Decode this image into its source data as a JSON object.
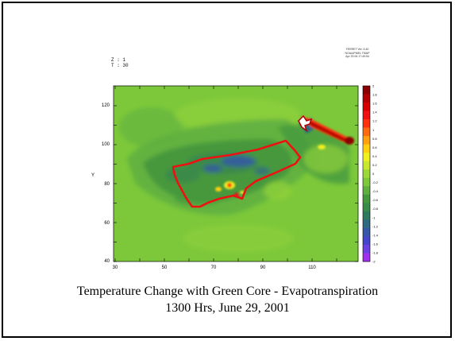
{
  "header": {
    "z_label": "Z : 1",
    "t_label": "T : 30",
    "meta_lines": [
      "FERRET Ver. 5.40",
      "NOAA/PMEL TMAP",
      "Apr 25 06 17:49:54"
    ]
  },
  "plot": {
    "y_axis_label": "Y",
    "x_ticks": [
      "30",
      "50",
      "70",
      "90",
      "110"
    ],
    "y_ticks": [
      "40",
      "60",
      "80",
      "100",
      "120"
    ]
  },
  "colorbar": {
    "labels": [
      "2",
      "1.8",
      "1.6",
      "1.4",
      "1.2",
      "1",
      "0.8",
      "0.6",
      "0.4",
      "0.2",
      "0",
      "-0.2",
      "-0.4",
      "-0.6",
      "-0.8",
      "-1",
      "-1.2",
      "-1.4",
      "-1.6",
      "-1.8",
      "-2"
    ],
    "colors": [
      "#8b0000",
      "#b30000",
      "#d60000",
      "#f01010",
      "#ff3010",
      "#ff6a10",
      "#ffa010",
      "#ffd010",
      "#f0f020",
      "#c8e830",
      "#9bd83a",
      "#7cc83a",
      "#5fb040",
      "#46983e",
      "#3a8a48",
      "#2f7a5e",
      "#2f6a82",
      "#3656a8",
      "#4444cc",
      "#6a40e0",
      "#a030f0"
    ]
  },
  "caption": {
    "line1": "Temperature Change with Green Core - Evapotranspiration",
    "line2": "1300 Hrs, June 29, 2001"
  }
}
